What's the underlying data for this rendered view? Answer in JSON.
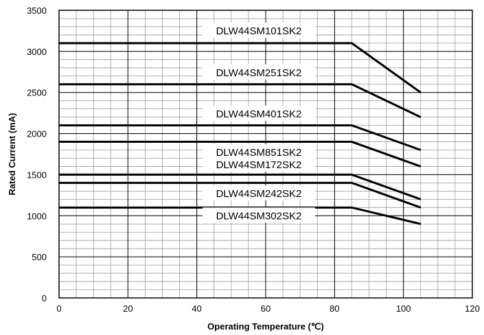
{
  "chart_data": {
    "type": "line",
    "title": "",
    "xlabel": "Operating Temperature (℃)",
    "ylabel": "Rated Current (mA)",
    "xlim": [
      0,
      120
    ],
    "ylim": [
      0,
      3500
    ],
    "xticks": [
      "0",
      "20",
      "40",
      "60",
      "80",
      "100",
      "120"
    ],
    "yticks": [
      "0",
      "500",
      "1000",
      "1500",
      "2000",
      "2500",
      "3000",
      "3500"
    ],
    "grid": true,
    "x": [
      0,
      85,
      105
    ],
    "series": [
      {
        "name": "DLW44SM101SK2",
        "values": [
          3100,
          3100,
          2500
        ]
      },
      {
        "name": "DLW44SM251SK2",
        "values": [
          2600,
          2600,
          2200
        ]
      },
      {
        "name": "DLW44SM401SK2",
        "values": [
          2100,
          2100,
          1800
        ]
      },
      {
        "name": "DLW44SM851SK2",
        "values": [
          1900,
          1900,
          1600
        ]
      },
      {
        "name": "DLW44SM172SK2",
        "values": [
          1500,
          1500,
          1200
        ]
      },
      {
        "name": "DLW44SM242SK2",
        "values": [
          1400,
          1400,
          1100
        ]
      },
      {
        "name": "DLW44SM302SK2",
        "values": [
          1100,
          1100,
          900
        ]
      }
    ]
  }
}
